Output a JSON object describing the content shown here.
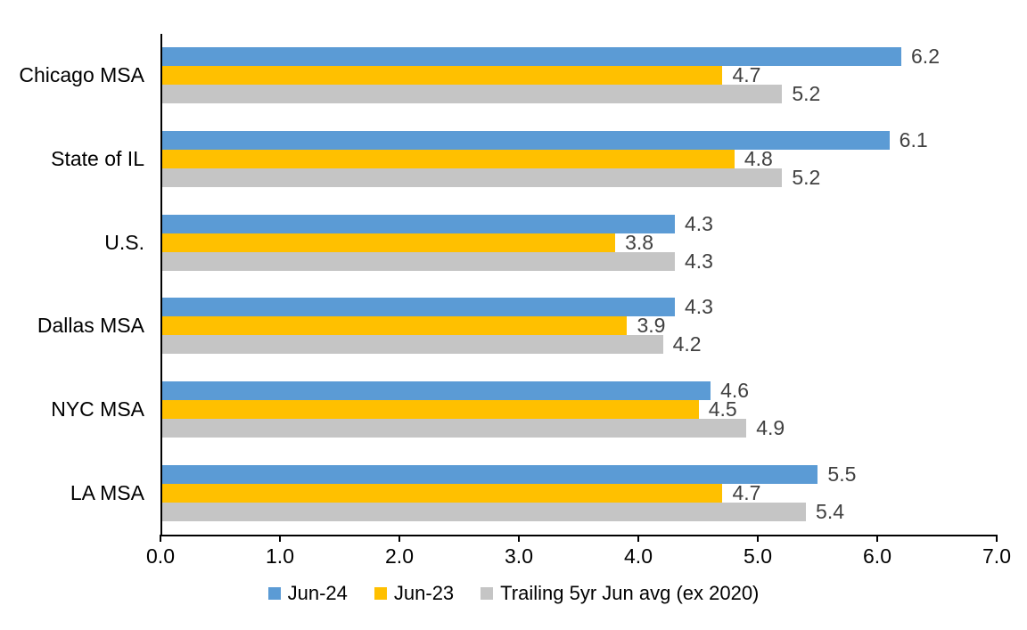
{
  "chart_data": {
    "type": "bar",
    "orientation": "horizontal",
    "title": "",
    "categories": [
      "Chicago MSA",
      "State of IL",
      "U.S.",
      "Dallas MSA",
      "NYC MSA",
      "LA MSA"
    ],
    "series": [
      {
        "name": "Jun-24",
        "color": "#5B9BD5",
        "values": [
          6.2,
          6.1,
          4.3,
          4.3,
          4.6,
          5.5
        ]
      },
      {
        "name": "Jun-23",
        "color": "#FFC000",
        "values": [
          4.7,
          4.8,
          3.8,
          3.9,
          4.5,
          4.7
        ]
      },
      {
        "name": "Trailing 5yr Jun avg (ex 2020)",
        "color": "#C5C5C5",
        "values": [
          5.2,
          5.2,
          4.3,
          4.2,
          4.9,
          5.4
        ]
      }
    ],
    "xlim": [
      0,
      7
    ],
    "x_ticks": [
      "0.0",
      "1.0",
      "2.0",
      "3.0",
      "4.0",
      "5.0",
      "6.0",
      "7.0"
    ],
    "data_labels": true,
    "data_label_decimals": 1,
    "grid": false,
    "legend_position": "bottom",
    "colors": {
      "axis": "#000000",
      "tick_label": "#000000",
      "category_label": "#000000",
      "data_label": "#404040",
      "background": "#FFFFFF"
    }
  }
}
